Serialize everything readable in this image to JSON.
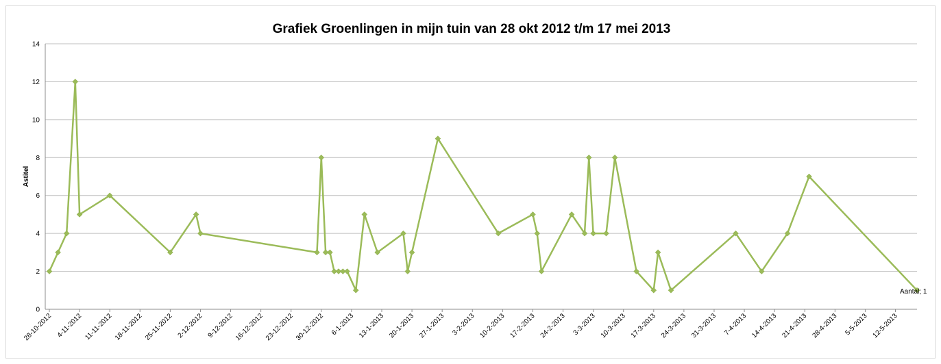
{
  "chart_data": {
    "type": "line",
    "title": "Grafiek Groenlingen in mijn tuin van 28 okt 2012 t/m 17 mei 2013",
    "ylabel": "Astitel",
    "xlabel": "",
    "ylim": [
      0,
      14
    ],
    "y_ticks": [
      0,
      2,
      4,
      6,
      8,
      10,
      12,
      14
    ],
    "grid": true,
    "color": "#9bbb59",
    "x_tick_labels": [
      "28-10-2012",
      "4-11-2012",
      "11-11-2012",
      "18-11-2012",
      "25-11-2012",
      "2-12-2012",
      "9-12-2012",
      "16-12-2012",
      "23-12-2012",
      "30-12-2012",
      "6-1-2013",
      "13-1-2013",
      "20-1-2013",
      "27-1-2013",
      "3-2-2013",
      "10-2-2013",
      "17-2-2013",
      "24-2-2013",
      "3-3-2013",
      "10-3-2013",
      "17-3-2013",
      "24-3-2013",
      "31-3-2013",
      "7-4-2013",
      "14-4-2013",
      "21-4-2013",
      "28-4-2013",
      "5-5-2013",
      "12-5-2013"
    ],
    "series": [
      {
        "x": [
          "2012-10-28",
          "2012-10-30",
          "2012-11-01",
          "2012-11-03",
          "2012-11-04",
          "2012-11-11",
          "2012-11-25",
          "2012-12-01",
          "2012-12-02",
          "2012-12-29",
          "2012-12-32",
          "2012-12-31",
          "2013-01-01",
          "2013-01-02",
          "2013-01-03",
          "2013-01-04",
          "2013-01-05",
          "2013-01-07",
          "2013-01-09",
          "2013-01-12",
          "2013-01-18",
          "2013-01-19",
          "2013-01-20",
          "2013-01-26",
          "2013-02-09",
          "2013-02-17",
          "2013-02-18",
          "2013-02-19",
          "2013-02-26",
          "2013-03-01",
          "2013-03-02",
          "2013-03-03",
          "2013-03-06",
          "2013-03-08",
          "2013-03-13",
          "2013-03-17",
          "2013-03-18",
          "2013-03-21",
          "2013-04-05",
          "2013-04-11",
          "2013-04-17",
          "2013-04-22",
          "2013-05-17"
        ],
        "values": [
          2,
          3,
          4,
          12,
          5,
          6,
          3,
          5,
          4,
          3,
          8,
          3,
          3,
          2,
          2,
          2,
          2,
          1,
          5,
          3,
          4,
          2,
          3,
          9,
          4,
          5,
          4,
          2,
          5,
          4,
          8,
          4,
          4,
          8,
          2,
          1,
          3,
          1,
          4,
          2,
          4,
          7,
          1
        ]
      }
    ],
    "annotation": "Aantal; 1"
  }
}
